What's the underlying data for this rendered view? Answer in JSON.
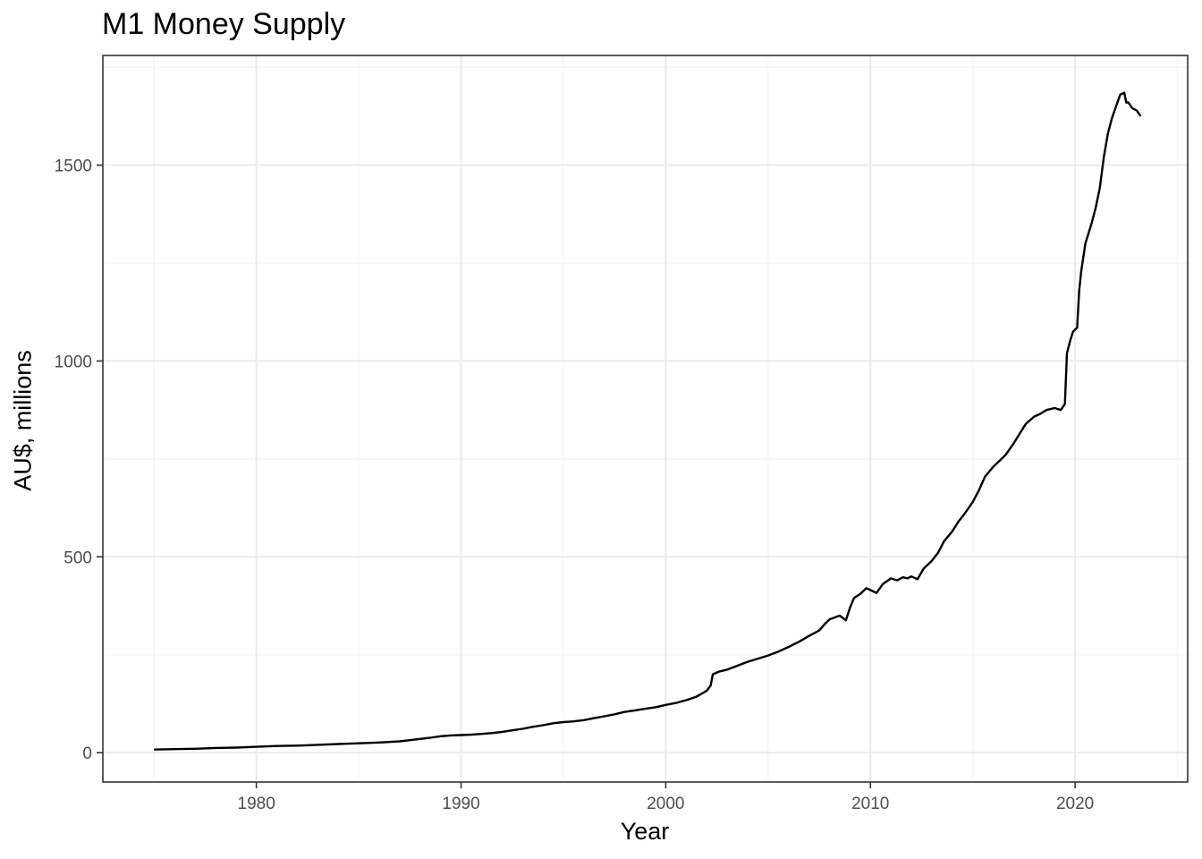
{
  "chart_data": {
    "type": "line",
    "title": "M1 Money Supply",
    "xlabel": "Year",
    "ylabel": "AU$, millions",
    "xlim": [
      1972.5,
      2025.5
    ],
    "ylim": [
      -75,
      1780
    ],
    "x_ticks": [
      1980,
      1990,
      2000,
      2010,
      2020
    ],
    "y_ticks": [
      0,
      500,
      1000,
      1500
    ],
    "grid": true,
    "legend": "none",
    "colors": {
      "line": "#000000",
      "grid_major": "#ebebeb",
      "grid_minor": "#f4f4f4",
      "panel_border": "#333333",
      "tick_text": "#4d4d4d"
    },
    "series": [
      {
        "x": [
          1975.0,
          1976.0,
          1977.0,
          1978.0,
          1979.0,
          1980.0,
          1981.0,
          1982.0,
          1983.0,
          1984.0,
          1985.0,
          1986.0,
          1987.0,
          1987.5,
          1988.0,
          1988.5,
          1989.0,
          1989.5,
          1990.0,
          1990.5,
          1991.0,
          1991.5,
          1992.0,
          1992.5,
          1993.0,
          1993.5,
          1994.0,
          1994.5,
          1995.0,
          1995.5,
          1996.0,
          1996.5,
          1997.0,
          1997.5,
          1998.0,
          1998.5,
          1999.0,
          1999.5,
          2000.0,
          2000.5,
          2001.0,
          2001.5,
          2002.0,
          2002.2,
          2002.3,
          2002.6,
          2003.0,
          2003.5,
          2004.0,
          2004.5,
          2005.0,
          2005.5,
          2006.0,
          2006.5,
          2007.0,
          2007.5,
          2007.8,
          2008.0,
          2008.5,
          2008.8,
          2009.0,
          2009.2,
          2009.5,
          2009.8,
          2010.0,
          2010.3,
          2010.6,
          2011.0,
          2011.3,
          2011.6,
          2011.8,
          2012.0,
          2012.3,
          2012.6,
          2013.0,
          2013.3,
          2013.6,
          2014.0,
          2014.3,
          2014.6,
          2015.0,
          2015.3,
          2015.6,
          2016.0,
          2016.3,
          2016.6,
          2017.0,
          2017.3,
          2017.6,
          2018.0,
          2018.3,
          2018.6,
          2019.0,
          2019.3,
          2019.5,
          2019.6,
          2019.75,
          2019.9,
          2020.1,
          2020.2,
          2020.3,
          2020.5,
          2020.8,
          2021.0,
          2021.2,
          2021.4,
          2021.6,
          2021.8,
          2022.0,
          2022.2,
          2022.4,
          2022.5,
          2022.6,
          2022.8,
          2023.0,
          2023.2
        ],
        "y": [
          8,
          9,
          10,
          12,
          13,
          15,
          17,
          18,
          20,
          22,
          24,
          26,
          29,
          32,
          35,
          38,
          42,
          44,
          45,
          46,
          48,
          50,
          53,
          57,
          61,
          66,
          70,
          75,
          78,
          80,
          83,
          88,
          93,
          98,
          104,
          108,
          112,
          116,
          122,
          127,
          134,
          143,
          158,
          172,
          200,
          207,
          212,
          222,
          232,
          240,
          248,
          258,
          270,
          283,
          298,
          312,
          330,
          340,
          350,
          338,
          370,
          395,
          405,
          420,
          415,
          408,
          430,
          445,
          440,
          448,
          445,
          450,
          443,
          470,
          490,
          510,
          540,
          565,
          590,
          610,
          640,
          670,
          705,
          730,
          745,
          760,
          790,
          815,
          840,
          858,
          865,
          875,
          880,
          875,
          890,
          1020,
          1050,
          1075,
          1085,
          1180,
          1230,
          1300,
          1350,
          1390,
          1440,
          1520,
          1580,
          1620,
          1650,
          1680,
          1685,
          1660,
          1660,
          1645,
          1640,
          1625
        ]
      }
    ]
  }
}
